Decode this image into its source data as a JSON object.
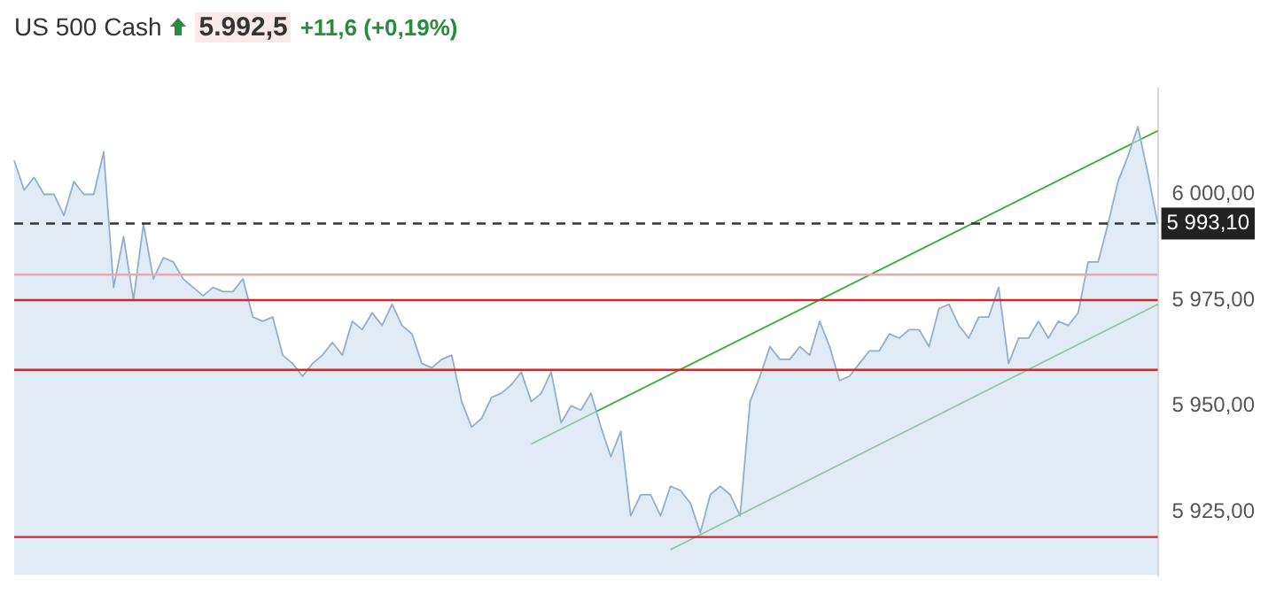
{
  "chart_data": {
    "type": "area",
    "title": "US 500 Cash",
    "annotations": [
      "5.992,5",
      "+11,6 (+0,19%)"
    ],
    "categories": [
      null,
      null,
      null,
      null,
      null,
      null,
      null,
      null,
      null,
      null,
      null,
      null,
      null,
      null,
      null,
      null,
      null,
      null,
      null,
      null,
      null,
      null,
      null,
      null,
      null,
      null,
      null,
      null,
      null,
      null,
      null,
      null,
      null,
      null,
      null,
      null,
      null,
      null,
      null,
      null,
      null,
      null,
      null,
      null,
      null,
      null,
      null,
      null,
      null,
      null,
      null,
      null,
      null,
      null,
      null,
      null,
      null,
      null,
      null,
      null,
      null,
      null,
      null,
      null,
      null,
      null,
      null,
      null,
      null,
      null,
      null,
      null,
      null,
      null,
      null,
      null,
      null,
      null,
      null,
      null,
      null,
      null,
      null,
      null,
      null,
      null,
      null,
      null,
      null,
      null,
      null,
      null,
      null,
      null,
      null,
      null,
      null,
      null,
      null,
      null,
      null,
      null,
      null,
      null,
      null,
      null,
      null,
      null,
      null,
      null,
      null,
      null,
      null,
      null,
      null,
      null
    ],
    "series": [
      {
        "color": "#8fb0cc",
        "values": [
          6008,
          6001,
          6004,
          6000,
          6000,
          5995,
          6003,
          6000,
          6000,
          6010,
          5978,
          5990,
          5975,
          5993,
          5980,
          5985,
          5984,
          5980,
          5978,
          5976,
          5978,
          5977,
          5977,
          5980,
          5971,
          5970,
          5971,
          5962,
          5960,
          5957,
          5960,
          5962,
          5965,
          5962,
          5970,
          5968,
          5972,
          5969,
          5974,
          5969,
          5967,
          5960,
          5959,
          5961,
          5962,
          5951,
          5945,
          5947,
          5952,
          5953,
          5955,
          5958,
          5951,
          5953,
          5958,
          5946,
          5950,
          5949,
          5953,
          5945,
          5938,
          5944,
          5924,
          5929,
          5929,
          5924,
          5931,
          5930,
          5927,
          5920,
          5929,
          5931,
          5929,
          5924,
          5951,
          5957,
          5964,
          5961,
          5961,
          5964,
          5962,
          5970,
          5964,
          5956,
          5957,
          5960,
          5963,
          5963,
          5967,
          5966,
          5968,
          5968,
          5964,
          5973,
          5974,
          5969,
          5966,
          5971,
          5971,
          5978,
          5960,
          5966,
          5966,
          5970,
          5966,
          5970,
          5969,
          5972,
          5984,
          5984,
          5993,
          6003,
          6009,
          6016,
          6005,
          5993
        ]
      },
      {
        "type": "line",
        "color": "#33aa33",
        "values": [
          null,
          null,
          null,
          null,
          null,
          null,
          null,
          null,
          null,
          null,
          null,
          null,
          null,
          null,
          null,
          null,
          null,
          null,
          null,
          null,
          null,
          null,
          null,
          null,
          null,
          null,
          null,
          null,
          null,
          null,
          null,
          null,
          null,
          null,
          null,
          null,
          null,
          null,
          null,
          null,
          null,
          null,
          null,
          null,
          null,
          null,
          null,
          null,
          null,
          null,
          null,
          null,
          5941,
          null,
          null,
          null,
          null,
          null,
          null,
          null,
          null,
          null,
          null,
          null,
          null,
          null,
          null,
          null,
          null,
          null,
          null,
          null,
          null,
          null,
          null,
          null,
          null,
          null,
          null,
          null,
          null,
          null,
          null,
          null,
          null,
          null,
          null,
          null,
          null,
          null,
          null,
          null,
          null,
          null,
          null,
          null,
          null,
          null,
          null,
          null,
          null,
          null,
          null,
          null,
          null,
          null,
          null,
          null,
          null,
          null,
          null,
          null,
          null,
          null,
          null,
          6015
        ]
      },
      {
        "type": "line",
        "color": "#33aa33",
        "values": [
          null,
          null,
          null,
          null,
          null,
          null,
          null,
          null,
          null,
          null,
          null,
          null,
          null,
          null,
          null,
          null,
          null,
          null,
          null,
          null,
          null,
          null,
          null,
          null,
          null,
          null,
          null,
          null,
          null,
          null,
          null,
          null,
          null,
          null,
          null,
          null,
          null,
          null,
          null,
          null,
          null,
          null,
          null,
          null,
          null,
          null,
          null,
          null,
          null,
          null,
          null,
          null,
          null,
          null,
          null,
          null,
          null,
          null,
          null,
          null,
          null,
          null,
          null,
          null,
          null,
          null,
          5916,
          null,
          null,
          null,
          null,
          null,
          null,
          null,
          null,
          null,
          null,
          null,
          null,
          null,
          null,
          null,
          null,
          null,
          null,
          null,
          null,
          null,
          null,
          null,
          null,
          null,
          null,
          null,
          null,
          null,
          null,
          null,
          null,
          null,
          null,
          null,
          null,
          null,
          null,
          null,
          null,
          null,
          null,
          null,
          null,
          null,
          null,
          null,
          null,
          5974
        ]
      }
    ],
    "ylim": [
      5910,
      6025
    ],
    "yticks": [
      {
        "value": 5925,
        "label": "5 925,00"
      },
      {
        "value": 5950,
        "label": "5 950,00"
      },
      {
        "value": 5975,
        "label": "5 975,00"
      },
      {
        "value": 6000,
        "label": "6 000,00"
      }
    ],
    "ref_lines": [
      {
        "axis": "y",
        "value": 5993.1,
        "label": "5 993,10",
        "color": "#333333",
        "line_style": "dashed"
      },
      {
        "axis": "y",
        "value": 5981,
        "color": "#f2a5a5"
      },
      {
        "axis": "y",
        "value": 5975,
        "color": "#cc2a2a"
      },
      {
        "axis": "y",
        "value": 5958.5,
        "color": "#cc2a2a"
      },
      {
        "axis": "y",
        "value": 5919,
        "color": "#cc2a2a"
      }
    ]
  }
}
